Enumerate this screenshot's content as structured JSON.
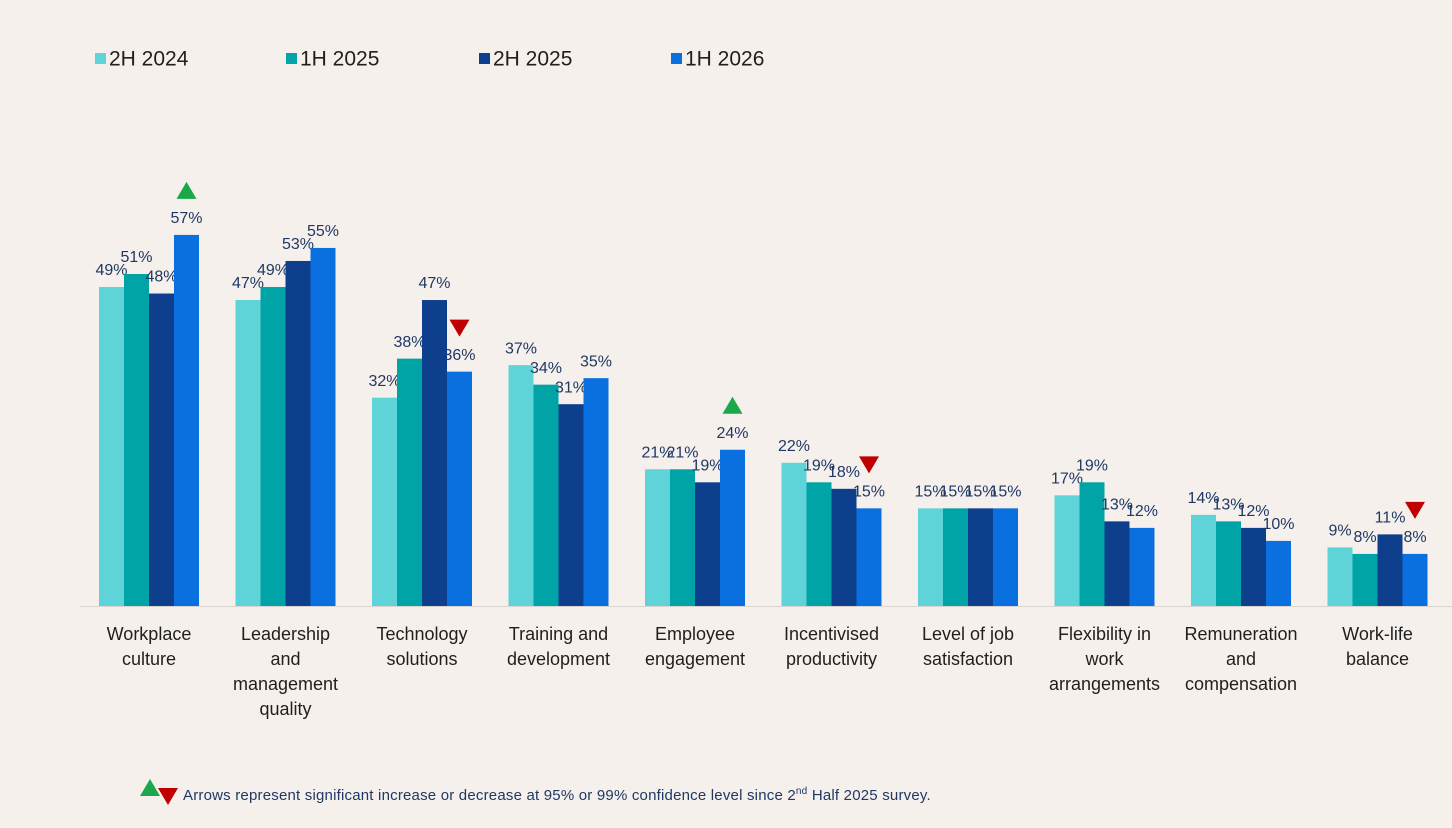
{
  "chart_data": {
    "type": "bar",
    "categories": [
      "Workplace culture",
      "Leadership and management quality",
      "Technology solutions",
      "Training and development",
      "Employee engagement",
      "Incentivised productivity",
      "Level of job satisfaction",
      "Flexibility in work arrangements",
      "Remuneration and compensation",
      "Work-life balance"
    ],
    "series": [
      {
        "name": "2H 2024",
        "color": "#5fd4d8",
        "values": [
          49,
          47,
          32,
          37,
          21,
          22,
          15,
          17,
          14,
          9
        ],
        "value_labels": [
          "49%",
          "47%",
          "32%",
          "37%",
          "21%",
          "22%",
          "15%",
          "17%",
          "14%",
          "9%"
        ]
      },
      {
        "name": "1H 2025",
        "color": "#00a4a6",
        "values": [
          51,
          49,
          38,
          34,
          21,
          19,
          15,
          19,
          13,
          8
        ],
        "value_labels": [
          "51%",
          "49%",
          "38%",
          "34%",
          "21%",
          "19%",
          "15%",
          "19%",
          "13%",
          "8%"
        ]
      },
      {
        "name": "2H 2025",
        "color": "#0d3f8c",
        "values": [
          48,
          53,
          47,
          31,
          19,
          18,
          15,
          13,
          12,
          11
        ],
        "value_labels": [
          "48%",
          "53%",
          "47%",
          "31%",
          "19%",
          "18%",
          "15%",
          "13%",
          "12%",
          "11%"
        ]
      },
      {
        "name": "1H 2026",
        "color": "#0a70e0",
        "values": [
          57,
          55,
          36,
          35,
          24,
          15,
          15,
          12,
          10,
          8
        ],
        "value_labels": [
          "57%",
          "55%",
          "36%",
          "35%",
          "24%",
          "15%",
          "15%",
          "12%",
          "10%",
          "8%"
        ],
        "significance": [
          "up",
          null,
          "down",
          null,
          "up",
          "down",
          null,
          null,
          null,
          "down"
        ]
      }
    ],
    "significance_colors": {
      "up": "#1aa84a",
      "down": "#c00000"
    },
    "footnote": {
      "text": "Arrows represent significant increase or decrease at 95% or 99% confidence level since 2",
      "superscript": "nd",
      "text_end": " Half 2025 survey."
    }
  }
}
